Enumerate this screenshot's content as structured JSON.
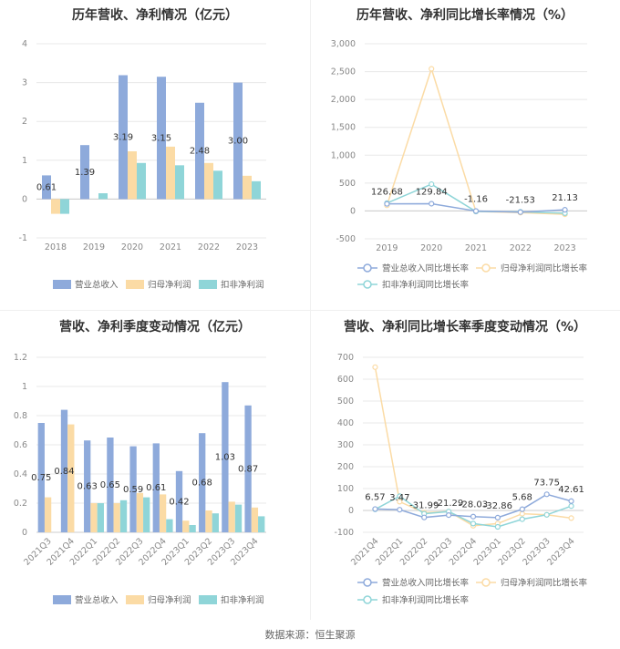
{
  "source": "数据来源：恒生聚源",
  "colors": {
    "revenue": "#8eaadb",
    "net_profit": "#fbdba5",
    "deducted_profit": "#8fd5d8",
    "revenue_line": "#8eaadb",
    "net_profit_line": "#fbdba5",
    "deducted_line": "#8fd5d8",
    "grid": "#e8e8e8",
    "axis": "#cccccc"
  },
  "panels": [
    {
      "title": "历年营收、净利情况（亿元）",
      "chart_data": {
        "type": "bar",
        "categories": [
          "2018",
          "2019",
          "2020",
          "2021",
          "2022",
          "2023"
        ],
        "series": [
          {
            "name": "营业总收入",
            "values": [
              0.61,
              1.39,
              3.19,
              3.15,
              2.48,
              3.0
            ]
          },
          {
            "name": "归母净利润",
            "values": [
              -0.38,
              0.0,
              1.23,
              1.35,
              0.93,
              0.6
            ]
          },
          {
            "name": "扣非净利润",
            "values": [
              -0.38,
              0.15,
              0.93,
              0.87,
              0.73,
              0.46
            ]
          }
        ],
        "data_labels": [
          "0.61",
          "1.39",
          "3.19",
          "3.15",
          "2.48",
          "3.00"
        ],
        "yticks": [
          "4",
          "3",
          "2",
          "1",
          "0",
          "-1"
        ],
        "ylim": [
          -1,
          4
        ],
        "legend": "bottom"
      }
    },
    {
      "title": "历年营收、净利同比增长率情况（%）",
      "chart_data": {
        "type": "line",
        "categories": [
          "2019",
          "2020",
          "2021",
          "2022",
          "2023"
        ],
        "series": [
          {
            "name": "营业总收入同比增长率",
            "values": [
              126.68,
              129.84,
              -1.16,
              -21.53,
              21.13
            ]
          },
          {
            "name": "归母净利润同比增长率",
            "values": [
              100,
              2550,
              -10,
              -30,
              -60
            ]
          },
          {
            "name": "扣非净利润同比增长率",
            "values": [
              140,
              480,
              -10,
              -15,
              -40
            ]
          }
        ],
        "data_labels": [
          "126.68",
          "129.84",
          "-1.16",
          "-21.53",
          "21.13"
        ],
        "yticks": [
          "3,000",
          "2,500",
          "2,000",
          "1,500",
          "1,000",
          "500",
          "0",
          "-500"
        ],
        "ylim": [
          -500,
          3000
        ],
        "legend": "bottom"
      }
    },
    {
      "title": "营收、净利季度变动情况（亿元）",
      "chart_data": {
        "type": "bar",
        "categories": [
          "2021Q3",
          "2021Q4",
          "2022Q1",
          "2022Q2",
          "2022Q3",
          "2022Q4",
          "2023Q1",
          "2023Q2",
          "2023Q3",
          "2023Q4"
        ],
        "series": [
          {
            "name": "营业总收入",
            "values": [
              0.75,
              0.84,
              0.63,
              0.65,
              0.59,
              0.61,
              0.42,
              0.68,
              1.03,
              0.87
            ]
          },
          {
            "name": "归母净利润",
            "values": [
              0.24,
              0.74,
              0.2,
              0.2,
              0.27,
              0.26,
              0.08,
              0.15,
              0.21,
              0.17
            ]
          },
          {
            "name": "扣非净利润",
            "values": [
              0.0,
              0.0,
              0.2,
              0.22,
              0.24,
              0.09,
              0.05,
              0.13,
              0.19,
              0.11
            ]
          }
        ],
        "data_labels": [
          "0.75",
          "0.84",
          "0.63",
          "0.65",
          "0.59",
          "0.61",
          "0.42",
          "0.68",
          "1.03",
          "0.87"
        ],
        "yticks": [
          "1.2",
          "1",
          "0.8",
          "0.6",
          "0.4",
          "0.2",
          "0"
        ],
        "ylim": [
          0,
          1.2
        ],
        "legend": "bottom"
      }
    },
    {
      "title": "营收、净利同比增长率季度变动情况（%）",
      "chart_data": {
        "type": "line",
        "categories": [
          "2021Q4",
          "2022Q1",
          "2022Q2",
          "2022Q3",
          "2022Q4",
          "2023Q1",
          "2023Q2",
          "2023Q3",
          "2023Q4"
        ],
        "series": [
          {
            "name": "营业总收入同比增长率",
            "values": [
              6.57,
              3.47,
              -31.99,
              -21.29,
              -28.03,
              -32.86,
              5.68,
              73.75,
              42.61
            ]
          },
          {
            "name": "归母净利润同比增长率",
            "values": [
              655,
              40,
              -10,
              -5,
              -70,
              -60,
              -15,
              -20,
              -35
            ]
          },
          {
            "name": "扣非净利润同比增长率",
            "values": [
              5,
              65,
              -15,
              -5,
              -60,
              -75,
              -40,
              -20,
              20
            ]
          }
        ],
        "data_labels": [
          "6.57",
          "3.47",
          "-31.99",
          "-21.29",
          "-28.03",
          "-32.86",
          "5.68",
          "73.75",
          "42.61"
        ],
        "yticks": [
          "700",
          "600",
          "500",
          "400",
          "300",
          "200",
          "100",
          "0",
          "-100"
        ],
        "ylim": [
          -100,
          700
        ],
        "legend": "bottom"
      }
    }
  ]
}
